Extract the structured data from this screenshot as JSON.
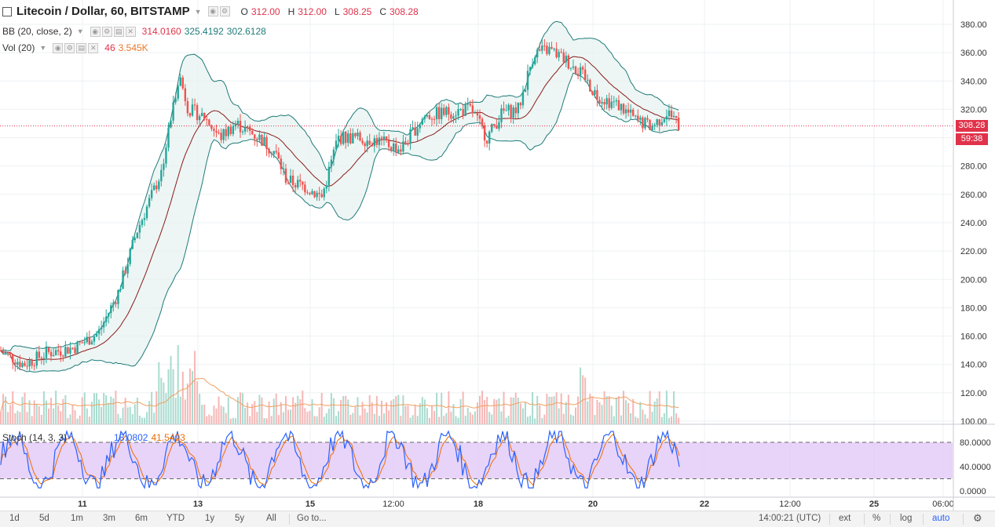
{
  "symbol": {
    "title": "Litecoin / Dollar, 60, BITSTAMP",
    "open_label": "O",
    "open": "312.00",
    "high_label": "H",
    "high": "312.00",
    "low_label": "L",
    "low": "308.25",
    "close_label": "C",
    "close": "308.28"
  },
  "indicators": {
    "bb": {
      "label": "BB (20, close, 2)",
      "v1": "314.0160",
      "v2": "325.4192",
      "v3": "302.6128"
    },
    "vol": {
      "label": "Vol (20)",
      "v1": "46",
      "v2": "3.545K"
    },
    "stoch": {
      "label": "Stoch (14, 3, 3)",
      "v1": "18.0802",
      "v2": "41.5403"
    }
  },
  "price_axis": {
    "ticks": [
      "380.00",
      "360.00",
      "340.00",
      "320.00",
      "300.00",
      "280.00",
      "260.00",
      "240.00",
      "220.00",
      "200.00",
      "180.00",
      "160.00",
      "140.00",
      "120.00",
      "100.00"
    ],
    "current_price": "308.28",
    "countdown": "59:38"
  },
  "stoch_axis": {
    "ticks": [
      "80.0000",
      "40.0000",
      "0.0000"
    ]
  },
  "time_axis": {
    "labels": [
      "11",
      "13",
      "15",
      "12:00",
      "18",
      "20",
      "22",
      "12:00",
      "25",
      "06:00"
    ]
  },
  "toolbar": {
    "ranges": [
      "1d",
      "5d",
      "1m",
      "3m",
      "6m",
      "YTD",
      "1y",
      "5y",
      "All"
    ],
    "goto": "Go to...",
    "time": "14:00:21 (UTC)",
    "ext": "ext",
    "pct": "%",
    "log": "log",
    "auto": "auto"
  },
  "colors": {
    "up": "#26a69a",
    "down": "#ef5350",
    "bb_band": "#1f7a7a",
    "bb_basis": "#8b1a1a",
    "stoch_fill": "#e2c8f8",
    "stoch_k": "#2962ff",
    "stoch_d": "#ef6c00",
    "price_tag": "#e0324a"
  },
  "icons": [
    "eye-icon",
    "gear-icon",
    "close-icon",
    "chevron-down-icon",
    "settings-icon"
  ]
}
